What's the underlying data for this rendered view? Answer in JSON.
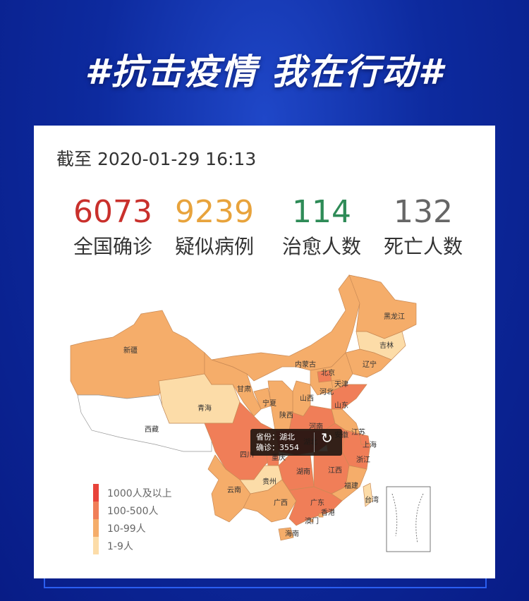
{
  "banner_title": "#抗击疫情 我在行动#",
  "timestamp": "截至 2020-01-29 16:13",
  "stats": [
    {
      "value": "6073",
      "label": "全国确诊",
      "color": "#c9302c"
    },
    {
      "value": "9239",
      "label": "疑似病例",
      "color": "#e8a33c"
    },
    {
      "value": "114",
      "label": "治愈人数",
      "color": "#2e8b57"
    },
    {
      "value": "132",
      "label": "死亡人数",
      "color": "#666666"
    }
  ],
  "tooltip": {
    "province_label": "省份：",
    "province": "湖北",
    "confirmed_label": "确诊：",
    "confirmed": "3554",
    "icon": "share-icon"
  },
  "legend": [
    {
      "label": "1000人及以上",
      "color": "#e8433a"
    },
    {
      "label": "100-500人",
      "color": "#f07e58"
    },
    {
      "label": "10-99人",
      "color": "#f5ad6a"
    },
    {
      "label": "1-9人",
      "color": "#fcdca8"
    }
  ],
  "map": {
    "provinces": [
      {
        "name": "新疆",
        "tier": 2
      },
      {
        "name": "西藏",
        "tier": -1
      },
      {
        "name": "青海",
        "tier": 3
      },
      {
        "name": "甘肃",
        "tier": 2
      },
      {
        "name": "内蒙古",
        "tier": 2
      },
      {
        "name": "黑龙江",
        "tier": 2
      },
      {
        "name": "吉林",
        "tier": 3
      },
      {
        "name": "辽宁",
        "tier": 2
      },
      {
        "name": "河北",
        "tier": 2
      },
      {
        "name": "北京",
        "tier": 1
      },
      {
        "name": "天津",
        "tier": 2
      },
      {
        "name": "山西",
        "tier": 2
      },
      {
        "name": "山东",
        "tier": 1
      },
      {
        "name": "陕西",
        "tier": 2
      },
      {
        "name": "宁夏",
        "tier": 2
      },
      {
        "name": "河南",
        "tier": 1
      },
      {
        "name": "湖北",
        "tier": 0
      },
      {
        "name": "四川",
        "tier": 1
      },
      {
        "name": "重庆",
        "tier": 1
      },
      {
        "name": "安徽",
        "tier": 1
      },
      {
        "name": "江苏",
        "tier": 2
      },
      {
        "name": "浙江",
        "tier": 1
      },
      {
        "name": "上海",
        "tier": 1
      },
      {
        "name": "湖南",
        "tier": 1
      },
      {
        "name": "江西",
        "tier": 1
      },
      {
        "name": "福建",
        "tier": 2
      },
      {
        "name": "贵州",
        "tier": 3
      },
      {
        "name": "云南",
        "tier": 2
      },
      {
        "name": "广西",
        "tier": 2
      },
      {
        "name": "广东",
        "tier": 1
      },
      {
        "name": "海南",
        "tier": 2
      },
      {
        "name": "台湾",
        "tier": 3
      },
      {
        "name": "香港",
        "tier": 2
      },
      {
        "name": "澳门",
        "tier": 2
      }
    ]
  }
}
